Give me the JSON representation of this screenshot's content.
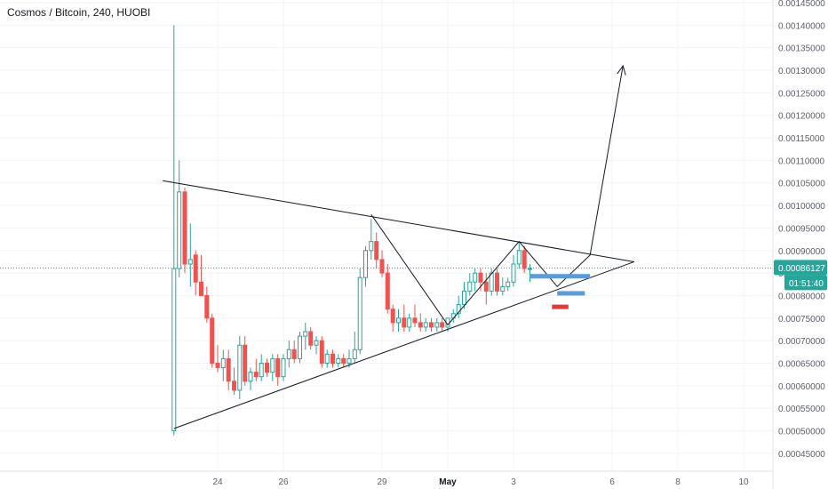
{
  "title": "Cosmos / Bitcoin, 240, HUOBI",
  "colors": {
    "up": "#26a69a",
    "down": "#ef5350",
    "price_line": "#26a69a",
    "countdown_bg": "#26a69a",
    "grid": "#f0f3fa",
    "drawing": "#131722",
    "blue_zone": "#5b9bdb",
    "red_zone": "#e53935"
  },
  "chart_data": {
    "type": "candlestick",
    "y_axis": {
      "min": 0.00043,
      "max": 0.00145,
      "step": 5e-05,
      "tick_labels": [
        "0.00145000",
        "0.00140000",
        "0.00135000",
        "0.00130000",
        "0.00125000",
        "0.00120000",
        "0.00115000",
        "0.00110000",
        "0.00105000",
        "0.00100000",
        "0.00095000",
        "0.00090000",
        "0.00085000",
        "0.00080000",
        "0.00075000",
        "0.00070000",
        "0.00065000",
        "0.00060000",
        "0.00055000",
        "0.00050000",
        "0.00045000"
      ]
    },
    "x_axis": {
      "tick_labels": [
        {
          "label": "24",
          "t": 24,
          "bold": false
        },
        {
          "label": "26",
          "t": 26,
          "bold": false
        },
        {
          "label": "29",
          "t": 29,
          "bold": false
        },
        {
          "label": "May",
          "t": 31,
          "bold": true
        },
        {
          "label": "3",
          "t": 33,
          "bold": false
        },
        {
          "label": "6",
          "t": 36,
          "bold": false
        },
        {
          "label": "8",
          "t": 38,
          "bold": false
        },
        {
          "label": "10",
          "t": 40,
          "bold": false
        }
      ]
    },
    "last_price": "0.00086127",
    "last_price_value": 0.00086127,
    "countdown": "01:51:40",
    "candles": [
      {
        "t": 22.67,
        "o": 0.0005,
        "h": 0.0014,
        "l": 0.00049,
        "c": 0.00086
      },
      {
        "t": 22.83,
        "o": 0.00086,
        "h": 0.0011,
        "l": 0.00084,
        "c": 0.00103
      },
      {
        "t": 23.0,
        "o": 0.00103,
        "h": 0.00104,
        "l": 0.00085,
        "c": 0.00087
      },
      {
        "t": 23.17,
        "o": 0.00087,
        "h": 0.00096,
        "l": 0.00082,
        "c": 0.00088
      },
      {
        "t": 23.33,
        "o": 0.00089,
        "h": 0.0009,
        "l": 0.0008,
        "c": 0.00083
      },
      {
        "t": 23.5,
        "o": 0.00083,
        "h": 0.00089,
        "l": 0.0008,
        "c": 0.0008
      },
      {
        "t": 23.67,
        "o": 0.0008,
        "h": 0.00082,
        "l": 0.00074,
        "c": 0.00075
      },
      {
        "t": 23.83,
        "o": 0.00075,
        "h": 0.00076,
        "l": 0.00064,
        "c": 0.00065
      },
      {
        "t": 24.0,
        "o": 0.00065,
        "h": 0.00069,
        "l": 0.00063,
        "c": 0.00064
      },
      {
        "t": 24.17,
        "o": 0.00064,
        "h": 0.00068,
        "l": 0.00061,
        "c": 0.00066
      },
      {
        "t": 24.33,
        "o": 0.00066,
        "h": 0.00068,
        "l": 0.00059,
        "c": 0.00061
      },
      {
        "t": 24.5,
        "o": 0.00061,
        "h": 0.00064,
        "l": 0.00058,
        "c": 0.00059
      },
      {
        "t": 24.67,
        "o": 0.00059,
        "h": 0.00071,
        "l": 0.00057,
        "c": 0.00069
      },
      {
        "t": 24.83,
        "o": 0.00069,
        "h": 0.00071,
        "l": 0.0006,
        "c": 0.00061
      },
      {
        "t": 25.0,
        "o": 0.00061,
        "h": 0.00064,
        "l": 0.00059,
        "c": 0.00063
      },
      {
        "t": 25.17,
        "o": 0.00063,
        "h": 0.00066,
        "l": 0.00061,
        "c": 0.00062
      },
      {
        "t": 25.33,
        "o": 0.00062,
        "h": 0.00067,
        "l": 0.00061,
        "c": 0.00065
      },
      {
        "t": 25.5,
        "o": 0.00065,
        "h": 0.00066,
        "l": 0.00062,
        "c": 0.00063
      },
      {
        "t": 25.67,
        "o": 0.00063,
        "h": 0.00067,
        "l": 0.00061,
        "c": 0.00066
      },
      {
        "t": 25.83,
        "o": 0.00066,
        "h": 0.00067,
        "l": 0.0006,
        "c": 0.00062
      },
      {
        "t": 26.0,
        "o": 0.00062,
        "h": 0.00067,
        "l": 0.00061,
        "c": 0.00066
      },
      {
        "t": 26.17,
        "o": 0.00066,
        "h": 0.0007,
        "l": 0.00064,
        "c": 0.00068
      },
      {
        "t": 26.33,
        "o": 0.00068,
        "h": 0.0007,
        "l": 0.00065,
        "c": 0.00066
      },
      {
        "t": 26.5,
        "o": 0.00066,
        "h": 0.00072,
        "l": 0.00065,
        "c": 0.00071
      },
      {
        "t": 26.67,
        "o": 0.00071,
        "h": 0.00074,
        "l": 0.00068,
        "c": 0.00072
      },
      {
        "t": 26.83,
        "o": 0.00072,
        "h": 0.00073,
        "l": 0.00068,
        "c": 0.00069
      },
      {
        "t": 27.0,
        "o": 0.00069,
        "h": 0.00071,
        "l": 0.00067,
        "c": 0.0007
      },
      {
        "t": 27.17,
        "o": 0.0007,
        "h": 0.00071,
        "l": 0.00064,
        "c": 0.00065
      },
      {
        "t": 27.33,
        "o": 0.00065,
        "h": 0.00068,
        "l": 0.00064,
        "c": 0.00067
      },
      {
        "t": 27.5,
        "o": 0.00067,
        "h": 0.00068,
        "l": 0.00064,
        "c": 0.00065
      },
      {
        "t": 27.67,
        "o": 0.00065,
        "h": 0.00067,
        "l": 0.00064,
        "c": 0.00066
      },
      {
        "t": 27.83,
        "o": 0.00066,
        "h": 0.00067,
        "l": 0.00064,
        "c": 0.00065
      },
      {
        "t": 28.0,
        "o": 0.00065,
        "h": 0.00068,
        "l": 0.00064,
        "c": 0.00066
      },
      {
        "t": 28.17,
        "o": 0.00066,
        "h": 0.00072,
        "l": 0.00065,
        "c": 0.00068
      },
      {
        "t": 28.33,
        "o": 0.00068,
        "h": 0.00086,
        "l": 0.00067,
        "c": 0.00084
      },
      {
        "t": 28.5,
        "o": 0.00084,
        "h": 0.00091,
        "l": 0.00082,
        "c": 0.0009
      },
      {
        "t": 28.67,
        "o": 0.0009,
        "h": 0.00097,
        "l": 0.00088,
        "c": 0.00092
      },
      {
        "t": 28.83,
        "o": 0.00092,
        "h": 0.00094,
        "l": 0.00086,
        "c": 0.00088
      },
      {
        "t": 29.0,
        "o": 0.00088,
        "h": 0.0009,
        "l": 0.00084,
        "c": 0.00085
      },
      {
        "t": 29.17,
        "o": 0.00085,
        "h": 0.00087,
        "l": 0.00076,
        "c": 0.00077
      },
      {
        "t": 29.33,
        "o": 0.00077,
        "h": 0.00078,
        "l": 0.00072,
        "c": 0.00074
      },
      {
        "t": 29.5,
        "o": 0.00074,
        "h": 0.00077,
        "l": 0.00072,
        "c": 0.00075
      },
      {
        "t": 29.67,
        "o": 0.00075,
        "h": 0.00078,
        "l": 0.00072,
        "c": 0.00073
      },
      {
        "t": 29.83,
        "o": 0.00073,
        "h": 0.00076,
        "l": 0.00072,
        "c": 0.00075
      },
      {
        "t": 30.0,
        "o": 0.00075,
        "h": 0.00078,
        "l": 0.00073,
        "c": 0.00074
      },
      {
        "t": 30.17,
        "o": 0.00074,
        "h": 0.00076,
        "l": 0.00072,
        "c": 0.00073
      },
      {
        "t": 30.33,
        "o": 0.00073,
        "h": 0.00075,
        "l": 0.00072,
        "c": 0.00074
      },
      {
        "t": 30.5,
        "o": 0.00074,
        "h": 0.00075,
        "l": 0.00072,
        "c": 0.00073
      },
      {
        "t": 30.67,
        "o": 0.00073,
        "h": 0.00075,
        "l": 0.00072,
        "c": 0.00074
      },
      {
        "t": 30.83,
        "o": 0.00074,
        "h": 0.00075,
        "l": 0.00072,
        "c": 0.00073
      },
      {
        "t": 31.0,
        "o": 0.00073,
        "h": 0.00075,
        "l": 0.00072,
        "c": 0.00075
      },
      {
        "t": 31.17,
        "o": 0.00075,
        "h": 0.00077,
        "l": 0.00074,
        "c": 0.00076
      },
      {
        "t": 31.33,
        "o": 0.00076,
        "h": 0.0008,
        "l": 0.00075,
        "c": 0.00078
      },
      {
        "t": 31.5,
        "o": 0.00078,
        "h": 0.00083,
        "l": 0.00077,
        "c": 0.00081
      },
      {
        "t": 31.67,
        "o": 0.00081,
        "h": 0.00085,
        "l": 0.0008,
        "c": 0.00083
      },
      {
        "t": 31.83,
        "o": 0.00083,
        "h": 0.00086,
        "l": 0.00081,
        "c": 0.00085
      },
      {
        "t": 32.0,
        "o": 0.00085,
        "h": 0.00086,
        "l": 0.00081,
        "c": 0.00083
      },
      {
        "t": 32.17,
        "o": 0.00083,
        "h": 0.00085,
        "l": 0.00078,
        "c": 0.00081
      },
      {
        "t": 32.33,
        "o": 0.00081,
        "h": 0.00086,
        "l": 0.0008,
        "c": 0.00085
      },
      {
        "t": 32.5,
        "o": 0.00085,
        "h": 0.00086,
        "l": 0.0008,
        "c": 0.00081
      },
      {
        "t": 32.67,
        "o": 0.00081,
        "h": 0.00084,
        "l": 0.0008,
        "c": 0.00082
      },
      {
        "t": 32.83,
        "o": 0.00082,
        "h": 0.00084,
        "l": 0.00081,
        "c": 0.00083
      },
      {
        "t": 33.0,
        "o": 0.00083,
        "h": 0.00089,
        "l": 0.00082,
        "c": 0.00087
      },
      {
        "t": 33.17,
        "o": 0.00087,
        "h": 0.00092,
        "l": 0.00086,
        "c": 0.0009
      },
      {
        "t": 33.33,
        "o": 0.0009,
        "h": 0.00091,
        "l": 0.00085,
        "c": 0.00086
      },
      {
        "t": 33.5,
        "o": 0.00086,
        "h": 0.00087,
        "l": 0.00083,
        "c": 0.00086
      }
    ],
    "drawings": {
      "triangle_upper": [
        {
          "t": 22.33,
          "p": 0.001055
        },
        {
          "t": 36.67,
          "p": 0.000875
        }
      ],
      "triangle_lower": [
        {
          "t": 22.67,
          "p": 0.000505
        },
        {
          "t": 36.67,
          "p": 0.000875
        }
      ],
      "zigzag": [
        {
          "t": 28.67,
          "p": 0.00098
        },
        {
          "t": 31.0,
          "p": 0.000735
        },
        {
          "t": 33.17,
          "p": 0.00092
        },
        {
          "t": 34.33,
          "p": 0.00082
        },
        {
          "t": 35.33,
          "p": 0.00089
        },
        {
          "t": 36.33,
          "p": 0.00131
        }
      ],
      "blue_zones": [
        {
          "t1": 33.5,
          "t2": 35.33,
          "p": 0.000843
        },
        {
          "t1": 34.33,
          "t2": 35.17,
          "p": 0.000805
        }
      ],
      "red_zones": [
        {
          "t1": 34.17,
          "t2": 34.67,
          "p": 0.000775
        }
      ]
    }
  }
}
